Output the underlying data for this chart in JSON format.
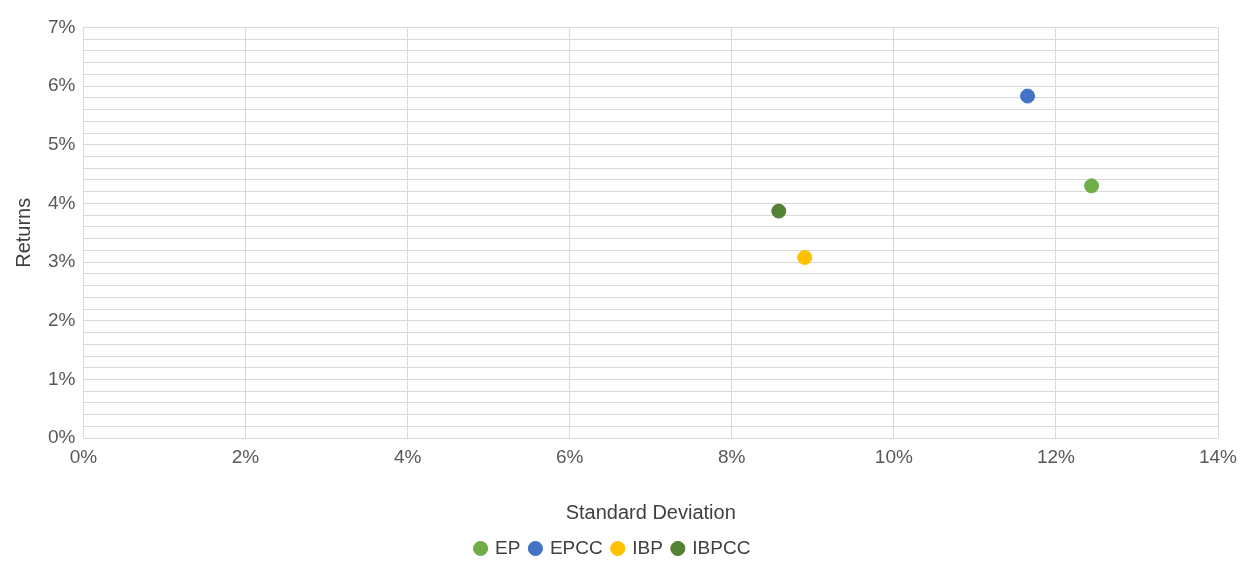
{
  "chart_data": {
    "type": "scatter",
    "xlabel": "Standard Deviation",
    "ylabel": "Returns",
    "marker": "circle",
    "grid": true,
    "legend": "bottom",
    "xlim": [
      0,
      14
    ],
    "ylim": [
      0,
      7
    ],
    "xticks": [
      {
        "value": 0,
        "label": "0%"
      },
      {
        "value": 2,
        "label": "2%"
      },
      {
        "value": 4,
        "label": "4%"
      },
      {
        "value": 6,
        "label": "6%"
      },
      {
        "value": 8,
        "label": "8%"
      },
      {
        "value": 10,
        "label": "10%"
      },
      {
        "value": 12,
        "label": "12%"
      },
      {
        "value": 14,
        "label": "14%"
      }
    ],
    "yticks": [
      {
        "value": 0,
        "label": "0%"
      },
      {
        "value": 0.2,
        "label": null
      },
      {
        "value": 0.4,
        "label": null
      },
      {
        "value": 0.6,
        "label": null
      },
      {
        "value": 0.8,
        "label": null
      },
      {
        "value": 1,
        "label": "1%"
      },
      {
        "value": 1.2,
        "label": null
      },
      {
        "value": 1.4,
        "label": null
      },
      {
        "value": 1.6,
        "label": null
      },
      {
        "value": 1.8,
        "label": null
      },
      {
        "value": 2,
        "label": "2%"
      },
      {
        "value": 2.2,
        "label": null
      },
      {
        "value": 2.4,
        "label": null
      },
      {
        "value": 2.6,
        "label": null
      },
      {
        "value": 2.8,
        "label": null
      },
      {
        "value": 3,
        "label": "3%"
      },
      {
        "value": 3.2,
        "label": null
      },
      {
        "value": 3.4,
        "label": null
      },
      {
        "value": 3.6,
        "label": null
      },
      {
        "value": 3.8,
        "label": null
      },
      {
        "value": 4,
        "label": "4%"
      },
      {
        "value": 4.2,
        "label": null
      },
      {
        "value": 4.4,
        "label": null
      },
      {
        "value": 4.6,
        "label": null
      },
      {
        "value": 4.8,
        "label": null
      },
      {
        "value": 5,
        "label": "5%"
      },
      {
        "value": 5.2,
        "label": null
      },
      {
        "value": 5.4,
        "label": null
      },
      {
        "value": 5.6,
        "label": null
      },
      {
        "value": 5.8,
        "label": null
      },
      {
        "value": 6,
        "label": "6%"
      },
      {
        "value": 6.2,
        "label": null
      },
      {
        "value": 6.4,
        "label": null
      },
      {
        "value": 6.6,
        "label": null
      },
      {
        "value": 6.8,
        "label": null
      },
      {
        "value": 7,
        "label": "7%"
      }
    ],
    "series": [
      {
        "name": "EP",
        "color": "#70ad47",
        "x": [
          12.44
        ],
        "values": [
          4.3
        ]
      },
      {
        "name": "EPCC",
        "color": "#4472c4",
        "x": [
          11.65
        ],
        "values": [
          5.83
        ]
      },
      {
        "name": "IBP",
        "color": "#ffc000",
        "x": [
          8.9
        ],
        "values": [
          3.08
        ]
      },
      {
        "name": "IBPCC",
        "color": "#548235",
        "x": [
          8.58
        ],
        "values": [
          3.87
        ]
      }
    ]
  }
}
